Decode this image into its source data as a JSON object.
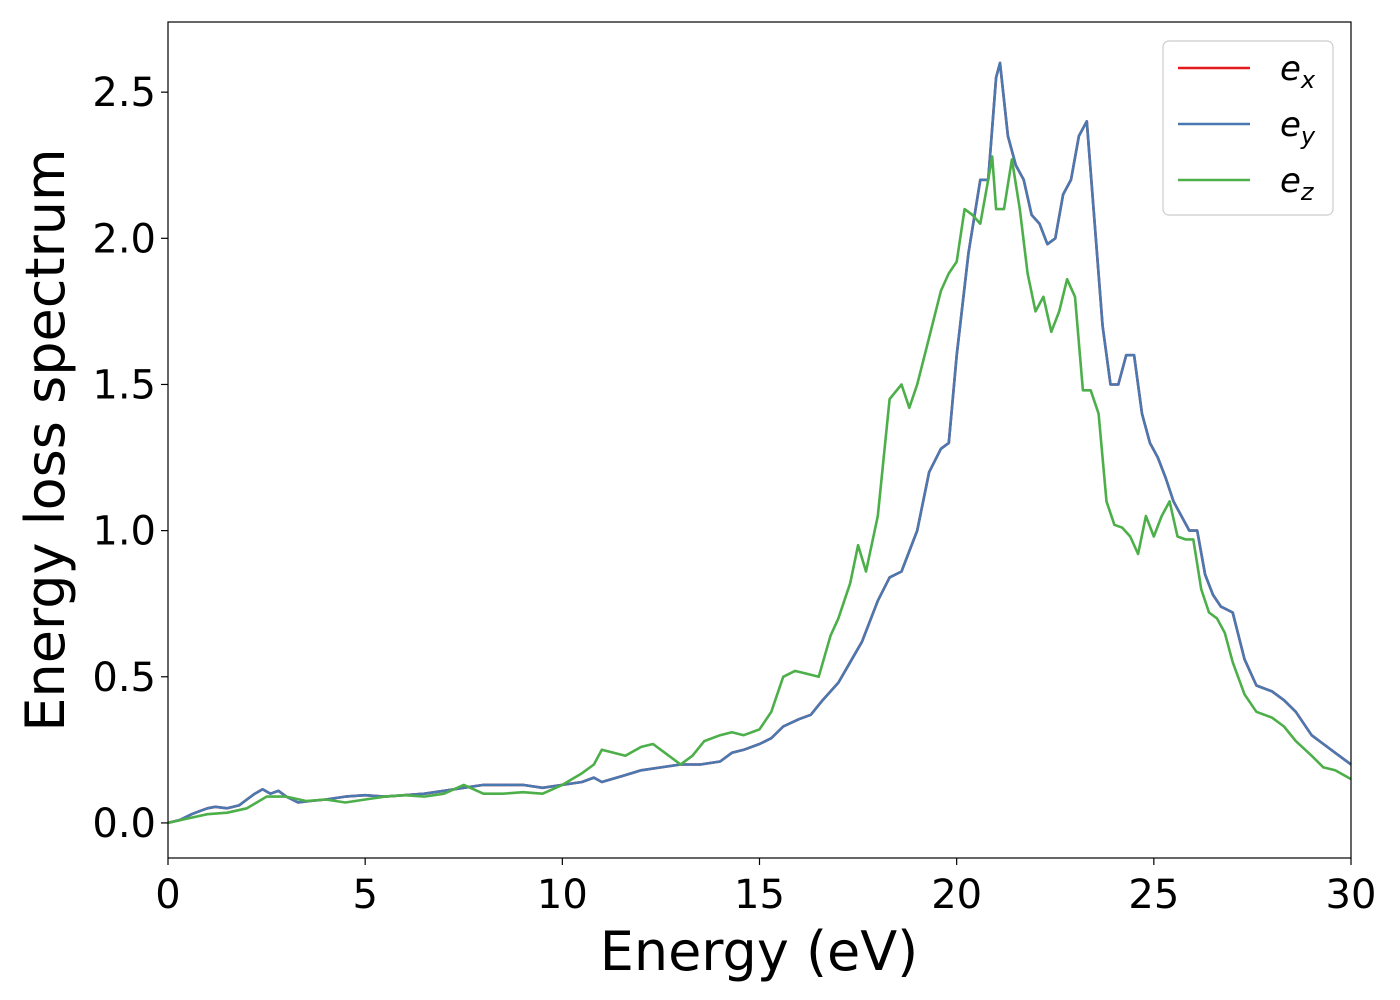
{
  "chart_data": {
    "type": "line",
    "xlabel": "Energy (eV)",
    "ylabel": "Energy loss spectrum",
    "xlim": [
      0,
      30
    ],
    "ylim": [
      -0.12,
      2.74
    ],
    "xticks": [
      0,
      5,
      10,
      15,
      20,
      25,
      30
    ],
    "xtick_labels": [
      "0",
      "5",
      "10",
      "15",
      "20",
      "25",
      "30"
    ],
    "yticks": [
      0.0,
      0.5,
      1.0,
      1.5,
      2.0,
      2.5
    ],
    "ytick_labels": [
      "0.0",
      "0.5",
      "1.0",
      "1.5",
      "2.0",
      "2.5"
    ],
    "grid": false,
    "legend_position": "top-right",
    "series": [
      {
        "name": "e_x",
        "label_base": "e",
        "label_sub": "x",
        "color": "#e41a1c",
        "x": [
          0,
          0.3,
          0.6,
          0.8,
          1.0,
          1.2,
          1.5,
          1.8,
          2.0,
          2.2,
          2.4,
          2.6,
          2.8,
          3.0,
          3.3,
          3.6,
          4.0,
          4.5,
          5.0,
          5.5,
          6.0,
          6.5,
          7.0,
          7.5,
          8.0,
          8.5,
          9.0,
          9.5,
          10.0,
          10.5,
          10.8,
          11.0,
          11.5,
          12.0,
          12.5,
          13.0,
          13.5,
          14.0,
          14.3,
          14.6,
          15.0,
          15.3,
          15.6,
          16.0,
          16.3,
          16.6,
          17.0,
          17.3,
          17.6,
          18.0,
          18.3,
          18.6,
          19.0,
          19.3,
          19.6,
          19.8,
          20.0,
          20.3,
          20.6,
          20.8,
          21.0,
          21.1,
          21.3,
          21.5,
          21.7,
          21.9,
          22.1,
          22.3,
          22.5,
          22.7,
          22.9,
          23.1,
          23.3,
          23.5,
          23.7,
          23.9,
          24.1,
          24.3,
          24.5,
          24.7,
          24.9,
          25.1,
          25.3,
          25.5,
          25.7,
          25.9,
          26.1,
          26.3,
          26.5,
          26.7,
          27.0,
          27.3,
          27.6,
          28.0,
          28.3,
          28.6,
          29.0,
          29.3,
          29.6,
          30.0
        ],
        "values": [
          0.0,
          0.01,
          0.03,
          0.04,
          0.05,
          0.055,
          0.05,
          0.06,
          0.08,
          0.1,
          0.115,
          0.1,
          0.11,
          0.09,
          0.07,
          0.075,
          0.08,
          0.09,
          0.095,
          0.09,
          0.095,
          0.1,
          0.11,
          0.12,
          0.13,
          0.13,
          0.13,
          0.12,
          0.13,
          0.14,
          0.155,
          0.14,
          0.16,
          0.18,
          0.19,
          0.2,
          0.2,
          0.21,
          0.24,
          0.25,
          0.27,
          0.29,
          0.33,
          0.355,
          0.37,
          0.42,
          0.48,
          0.55,
          0.62,
          0.76,
          0.84,
          0.86,
          1.0,
          1.2,
          1.28,
          1.3,
          1.6,
          1.95,
          2.2,
          2.2,
          2.55,
          2.6,
          2.35,
          2.25,
          2.2,
          2.08,
          2.05,
          1.98,
          2.0,
          2.15,
          2.2,
          2.35,
          2.4,
          2.05,
          1.7,
          1.5,
          1.5,
          1.6,
          1.6,
          1.4,
          1.3,
          1.25,
          1.18,
          1.1,
          1.05,
          1.0,
          1.0,
          0.85,
          0.78,
          0.74,
          0.72,
          0.56,
          0.47,
          0.45,
          0.42,
          0.38,
          0.3,
          0.27,
          0.24,
          0.2
        ]
      },
      {
        "name": "e_y",
        "label_base": "e",
        "label_sub": "y",
        "color": "#4a78b0",
        "x": [
          0,
          0.3,
          0.6,
          0.8,
          1.0,
          1.2,
          1.5,
          1.8,
          2.0,
          2.2,
          2.4,
          2.6,
          2.8,
          3.0,
          3.3,
          3.6,
          4.0,
          4.5,
          5.0,
          5.5,
          6.0,
          6.5,
          7.0,
          7.5,
          8.0,
          8.5,
          9.0,
          9.5,
          10.0,
          10.5,
          10.8,
          11.0,
          11.5,
          12.0,
          12.5,
          13.0,
          13.5,
          14.0,
          14.3,
          14.6,
          15.0,
          15.3,
          15.6,
          16.0,
          16.3,
          16.6,
          17.0,
          17.3,
          17.6,
          18.0,
          18.3,
          18.6,
          19.0,
          19.3,
          19.6,
          19.8,
          20.0,
          20.3,
          20.6,
          20.8,
          21.0,
          21.1,
          21.3,
          21.5,
          21.7,
          21.9,
          22.1,
          22.3,
          22.5,
          22.7,
          22.9,
          23.1,
          23.3,
          23.5,
          23.7,
          23.9,
          24.1,
          24.3,
          24.5,
          24.7,
          24.9,
          25.1,
          25.3,
          25.5,
          25.7,
          25.9,
          26.1,
          26.3,
          26.5,
          26.7,
          27.0,
          27.3,
          27.6,
          28.0,
          28.3,
          28.6,
          29.0,
          29.3,
          29.6,
          30.0
        ],
        "values": [
          0.0,
          0.01,
          0.03,
          0.04,
          0.05,
          0.055,
          0.05,
          0.06,
          0.08,
          0.1,
          0.115,
          0.1,
          0.11,
          0.09,
          0.07,
          0.075,
          0.08,
          0.09,
          0.095,
          0.09,
          0.095,
          0.1,
          0.11,
          0.12,
          0.13,
          0.13,
          0.13,
          0.12,
          0.13,
          0.14,
          0.155,
          0.14,
          0.16,
          0.18,
          0.19,
          0.2,
          0.2,
          0.21,
          0.24,
          0.25,
          0.27,
          0.29,
          0.33,
          0.355,
          0.37,
          0.42,
          0.48,
          0.55,
          0.62,
          0.76,
          0.84,
          0.86,
          1.0,
          1.2,
          1.28,
          1.3,
          1.6,
          1.95,
          2.2,
          2.2,
          2.55,
          2.6,
          2.35,
          2.25,
          2.2,
          2.08,
          2.05,
          1.98,
          2.0,
          2.15,
          2.2,
          2.35,
          2.4,
          2.05,
          1.7,
          1.5,
          1.5,
          1.6,
          1.6,
          1.4,
          1.3,
          1.25,
          1.18,
          1.1,
          1.05,
          1.0,
          1.0,
          0.85,
          0.78,
          0.74,
          0.72,
          0.56,
          0.47,
          0.45,
          0.42,
          0.38,
          0.3,
          0.27,
          0.24,
          0.2
        ]
      },
      {
        "name": "e_z",
        "label_base": "e",
        "label_sub": "z",
        "color": "#4daf4a",
        "x": [
          0,
          0.5,
          1.0,
          1.5,
          2.0,
          2.5,
          3.0,
          3.5,
          4.0,
          4.5,
          5.0,
          5.5,
          6.0,
          6.5,
          7.0,
          7.5,
          8.0,
          8.5,
          9.0,
          9.5,
          10.0,
          10.5,
          10.8,
          11.0,
          11.3,
          11.6,
          12.0,
          12.3,
          12.6,
          13.0,
          13.3,
          13.6,
          14.0,
          14.3,
          14.6,
          15.0,
          15.3,
          15.6,
          15.9,
          16.2,
          16.5,
          16.8,
          17.0,
          17.3,
          17.5,
          17.7,
          18.0,
          18.3,
          18.6,
          18.8,
          19.0,
          19.3,
          19.6,
          19.8,
          20.0,
          20.2,
          20.4,
          20.6,
          20.8,
          20.9,
          21.0,
          21.2,
          21.4,
          21.6,
          21.8,
          22.0,
          22.2,
          22.4,
          22.6,
          22.8,
          23.0,
          23.2,
          23.4,
          23.6,
          23.8,
          24.0,
          24.2,
          24.4,
          24.6,
          24.8,
          25.0,
          25.2,
          25.4,
          25.6,
          25.8,
          26.0,
          26.2,
          26.4,
          26.6,
          26.8,
          27.0,
          27.3,
          27.6,
          28.0,
          28.3,
          28.6,
          29.0,
          29.3,
          29.6,
          30.0
        ],
        "values": [
          0.0,
          0.015,
          0.03,
          0.035,
          0.05,
          0.09,
          0.09,
          0.075,
          0.08,
          0.07,
          0.08,
          0.09,
          0.095,
          0.09,
          0.1,
          0.13,
          0.1,
          0.1,
          0.105,
          0.1,
          0.13,
          0.17,
          0.2,
          0.25,
          0.24,
          0.23,
          0.26,
          0.27,
          0.24,
          0.2,
          0.23,
          0.28,
          0.3,
          0.31,
          0.3,
          0.32,
          0.38,
          0.5,
          0.52,
          0.51,
          0.5,
          0.64,
          0.7,
          0.82,
          0.95,
          0.86,
          1.05,
          1.45,
          1.5,
          1.42,
          1.5,
          1.66,
          1.82,
          1.88,
          1.92,
          2.1,
          2.08,
          2.05,
          2.2,
          2.28,
          2.1,
          2.1,
          2.27,
          2.1,
          1.88,
          1.75,
          1.8,
          1.68,
          1.75,
          1.86,
          1.8,
          1.48,
          1.48,
          1.4,
          1.1,
          1.02,
          1.01,
          0.98,
          0.92,
          1.05,
          0.98,
          1.05,
          1.1,
          0.98,
          0.97,
          0.97,
          0.8,
          0.72,
          0.7,
          0.65,
          0.55,
          0.44,
          0.38,
          0.36,
          0.33,
          0.28,
          0.23,
          0.19,
          0.18,
          0.15
        ]
      }
    ]
  }
}
